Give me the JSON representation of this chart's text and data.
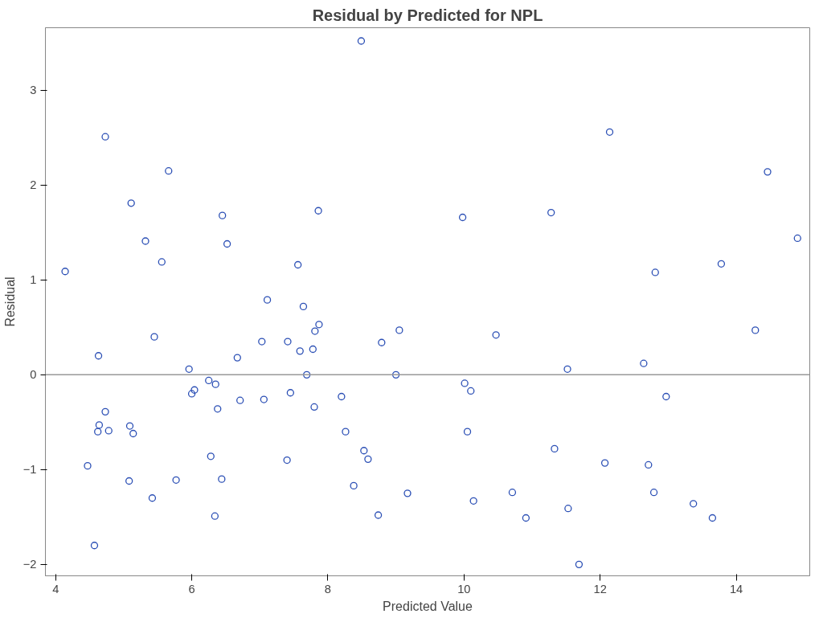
{
  "chart_data": {
    "type": "scatter",
    "title": "Residual by Predicted for NPL",
    "xlabel": "Predicted Value",
    "ylabel": "Residual",
    "x": [
      4.14,
      4.73,
      4.63,
      4.73,
      4.64,
      4.62,
      4.78,
      4.47,
      4.57,
      5.11,
      5.09,
      5.14,
      5.08,
      5.42,
      5.32,
      5.45,
      5.56,
      5.66,
      5.77,
      5.96,
      6.0,
      6.04,
      6.25,
      6.35,
      6.38,
      6.28,
      6.44,
      6.34,
      6.45,
      6.52,
      6.67,
      6.71,
      7.11,
      7.03,
      7.06,
      7.4,
      7.41,
      7.45,
      7.56,
      7.59,
      7.64,
      7.69,
      7.78,
      7.81,
      7.87,
      7.86,
      7.8,
      8.2,
      8.26,
      8.38,
      8.53,
      8.59,
      8.49,
      8.79,
      8.74,
      9.05,
      9.0,
      9.17,
      9.98,
      10.01,
      10.1,
      10.05,
      10.14,
      10.47,
      10.71,
      10.91,
      11.28,
      11.33,
      11.52,
      11.53,
      11.69,
      12.14,
      12.07,
      12.64,
      12.71,
      12.81,
      12.79,
      12.97,
      13.37,
      13.65,
      13.78,
      14.28,
      14.46,
      14.9
    ],
    "series": [
      {
        "color": "#2b4fb5",
        "values": [
          1.09,
          2.51,
          0.2,
          -0.39,
          -0.53,
          -0.6,
          -0.59,
          -0.96,
          -1.8,
          1.81,
          -0.54,
          -0.62,
          -1.12,
          -1.3,
          1.41,
          0.4,
          1.19,
          2.15,
          -1.11,
          0.06,
          -0.2,
          -0.16,
          -0.06,
          -0.1,
          -0.36,
          -0.86,
          -1.1,
          -1.49,
          1.68,
          1.38,
          0.18,
          -0.27,
          0.79,
          0.35,
          -0.26,
          -0.9,
          0.35,
          -0.19,
          1.16,
          0.25,
          0.72,
          0.0,
          0.27,
          0.46,
          0.53,
          1.73,
          -0.34,
          -0.23,
          -0.6,
          -1.17,
          -0.8,
          -0.89,
          3.52,
          0.34,
          -1.48,
          0.47,
          0.0,
          -1.25,
          1.66,
          -0.09,
          -0.17,
          -0.6,
          -1.33,
          0.42,
          -1.24,
          -1.51,
          1.71,
          -0.78,
          0.06,
          -1.41,
          -2.0,
          2.56,
          -0.93,
          0.12,
          -0.95,
          1.08,
          -1.24,
          -0.23,
          -1.36,
          -1.51,
          1.17,
          0.47,
          2.14,
          1.44
        ]
      }
    ],
    "xlim": [
      3.85,
      15.08
    ],
    "ylim": [
      -2.12,
      3.66
    ],
    "xticks": [
      4,
      6,
      8,
      10,
      12,
      14
    ],
    "yticks": [
      -2,
      -1,
      0,
      1,
      2,
      3
    ],
    "marker": "circle",
    "grid": false,
    "ref_lines": [
      {
        "axis": "y",
        "value": 0,
        "color": "#999999"
      }
    ]
  }
}
